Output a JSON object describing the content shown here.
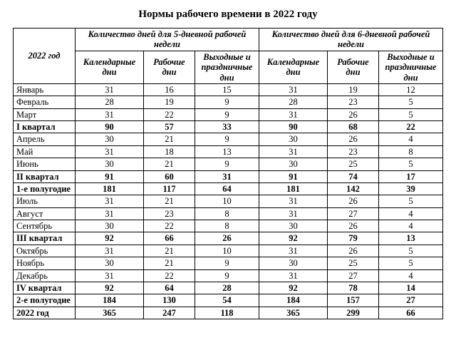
{
  "title": "Нормы рабочего времени в 2022 году",
  "header": {
    "year": "2022 год",
    "five": "Количество дней для 5-дневной рабочей недели",
    "six": "Количество дней для 6-дневной рабочей недели",
    "cal": "Календарные дни",
    "work": "Рабочие дни",
    "hol": "Выходные и праздничные дни"
  },
  "rows": [
    {
      "bold": false,
      "label": "Январь",
      "c5": "31",
      "w5": "16",
      "h5": "15",
      "c6": "31",
      "w6": "19",
      "h6": "12"
    },
    {
      "bold": false,
      "label": "Февраль",
      "c5": "28",
      "w5": "19",
      "h5": "9",
      "c6": "28",
      "w6": "23",
      "h6": "5"
    },
    {
      "bold": false,
      "label": "Март",
      "c5": "31",
      "w5": "22",
      "h5": "9",
      "c6": "31",
      "w6": "26",
      "h6": "5"
    },
    {
      "bold": true,
      "label": "I квартал",
      "c5": "90",
      "w5": "57",
      "h5": "33",
      "c6": "90",
      "w6": "68",
      "h6": "22"
    },
    {
      "bold": false,
      "label": "Апрель",
      "c5": "30",
      "w5": "21",
      "h5": "9",
      "c6": "30",
      "w6": "26",
      "h6": "4"
    },
    {
      "bold": false,
      "label": "Май",
      "c5": "31",
      "w5": "18",
      "h5": "13",
      "c6": "31",
      "w6": "23",
      "h6": "8"
    },
    {
      "bold": false,
      "label": "Июнь",
      "c5": "30",
      "w5": "21",
      "h5": "9",
      "c6": "30",
      "w6": "25",
      "h6": "5"
    },
    {
      "bold": true,
      "label": "II квартал",
      "c5": "91",
      "w5": "60",
      "h5": "31",
      "c6": "91",
      "w6": "74",
      "h6": "17"
    },
    {
      "bold": true,
      "label": "1-е полугодие",
      "c5": "181",
      "w5": "117",
      "h5": "64",
      "c6": "181",
      "w6": "142",
      "h6": "39"
    },
    {
      "bold": false,
      "label": "Июль",
      "c5": "31",
      "w5": "21",
      "h5": "10",
      "c6": "31",
      "w6": "26",
      "h6": "5"
    },
    {
      "bold": false,
      "label": "Август",
      "c5": "31",
      "w5": "23",
      "h5": "8",
      "c6": "31",
      "w6": "27",
      "h6": "4"
    },
    {
      "bold": false,
      "label": "Сентябрь",
      "c5": "30",
      "w5": "22",
      "h5": "8",
      "c6": "30",
      "w6": "26",
      "h6": "4"
    },
    {
      "bold": true,
      "label": "III квартал",
      "c5": "92",
      "w5": "66",
      "h5": "26",
      "c6": "92",
      "w6": "79",
      "h6": "13"
    },
    {
      "bold": false,
      "label": "Октябрь",
      "c5": "31",
      "w5": "21",
      "h5": "10",
      "c6": "31",
      "w6": "26",
      "h6": "5"
    },
    {
      "bold": false,
      "label": "Ноябрь",
      "c5": "30",
      "w5": "21",
      "h5": "9",
      "c6": "30",
      "w6": "25",
      "h6": "5"
    },
    {
      "bold": false,
      "label": "Декабрь",
      "c5": "31",
      "w5": "22",
      "h5": "9",
      "c6": "31",
      "w6": "27",
      "h6": "4"
    },
    {
      "bold": true,
      "label": "IV квартал",
      "c5": "92",
      "w5": "64",
      "h5": "28",
      "c6": "92",
      "w6": "78",
      "h6": "14"
    },
    {
      "bold": true,
      "label": "2-е полугодие",
      "c5": "184",
      "w5": "130",
      "h5": "54",
      "c6": "184",
      "w6": "157",
      "h6": "27"
    },
    {
      "bold": true,
      "label": "2022 год",
      "c5": "365",
      "w5": "247",
      "h5": "118",
      "c6": "365",
      "w6": "299",
      "h6": "66"
    }
  ]
}
